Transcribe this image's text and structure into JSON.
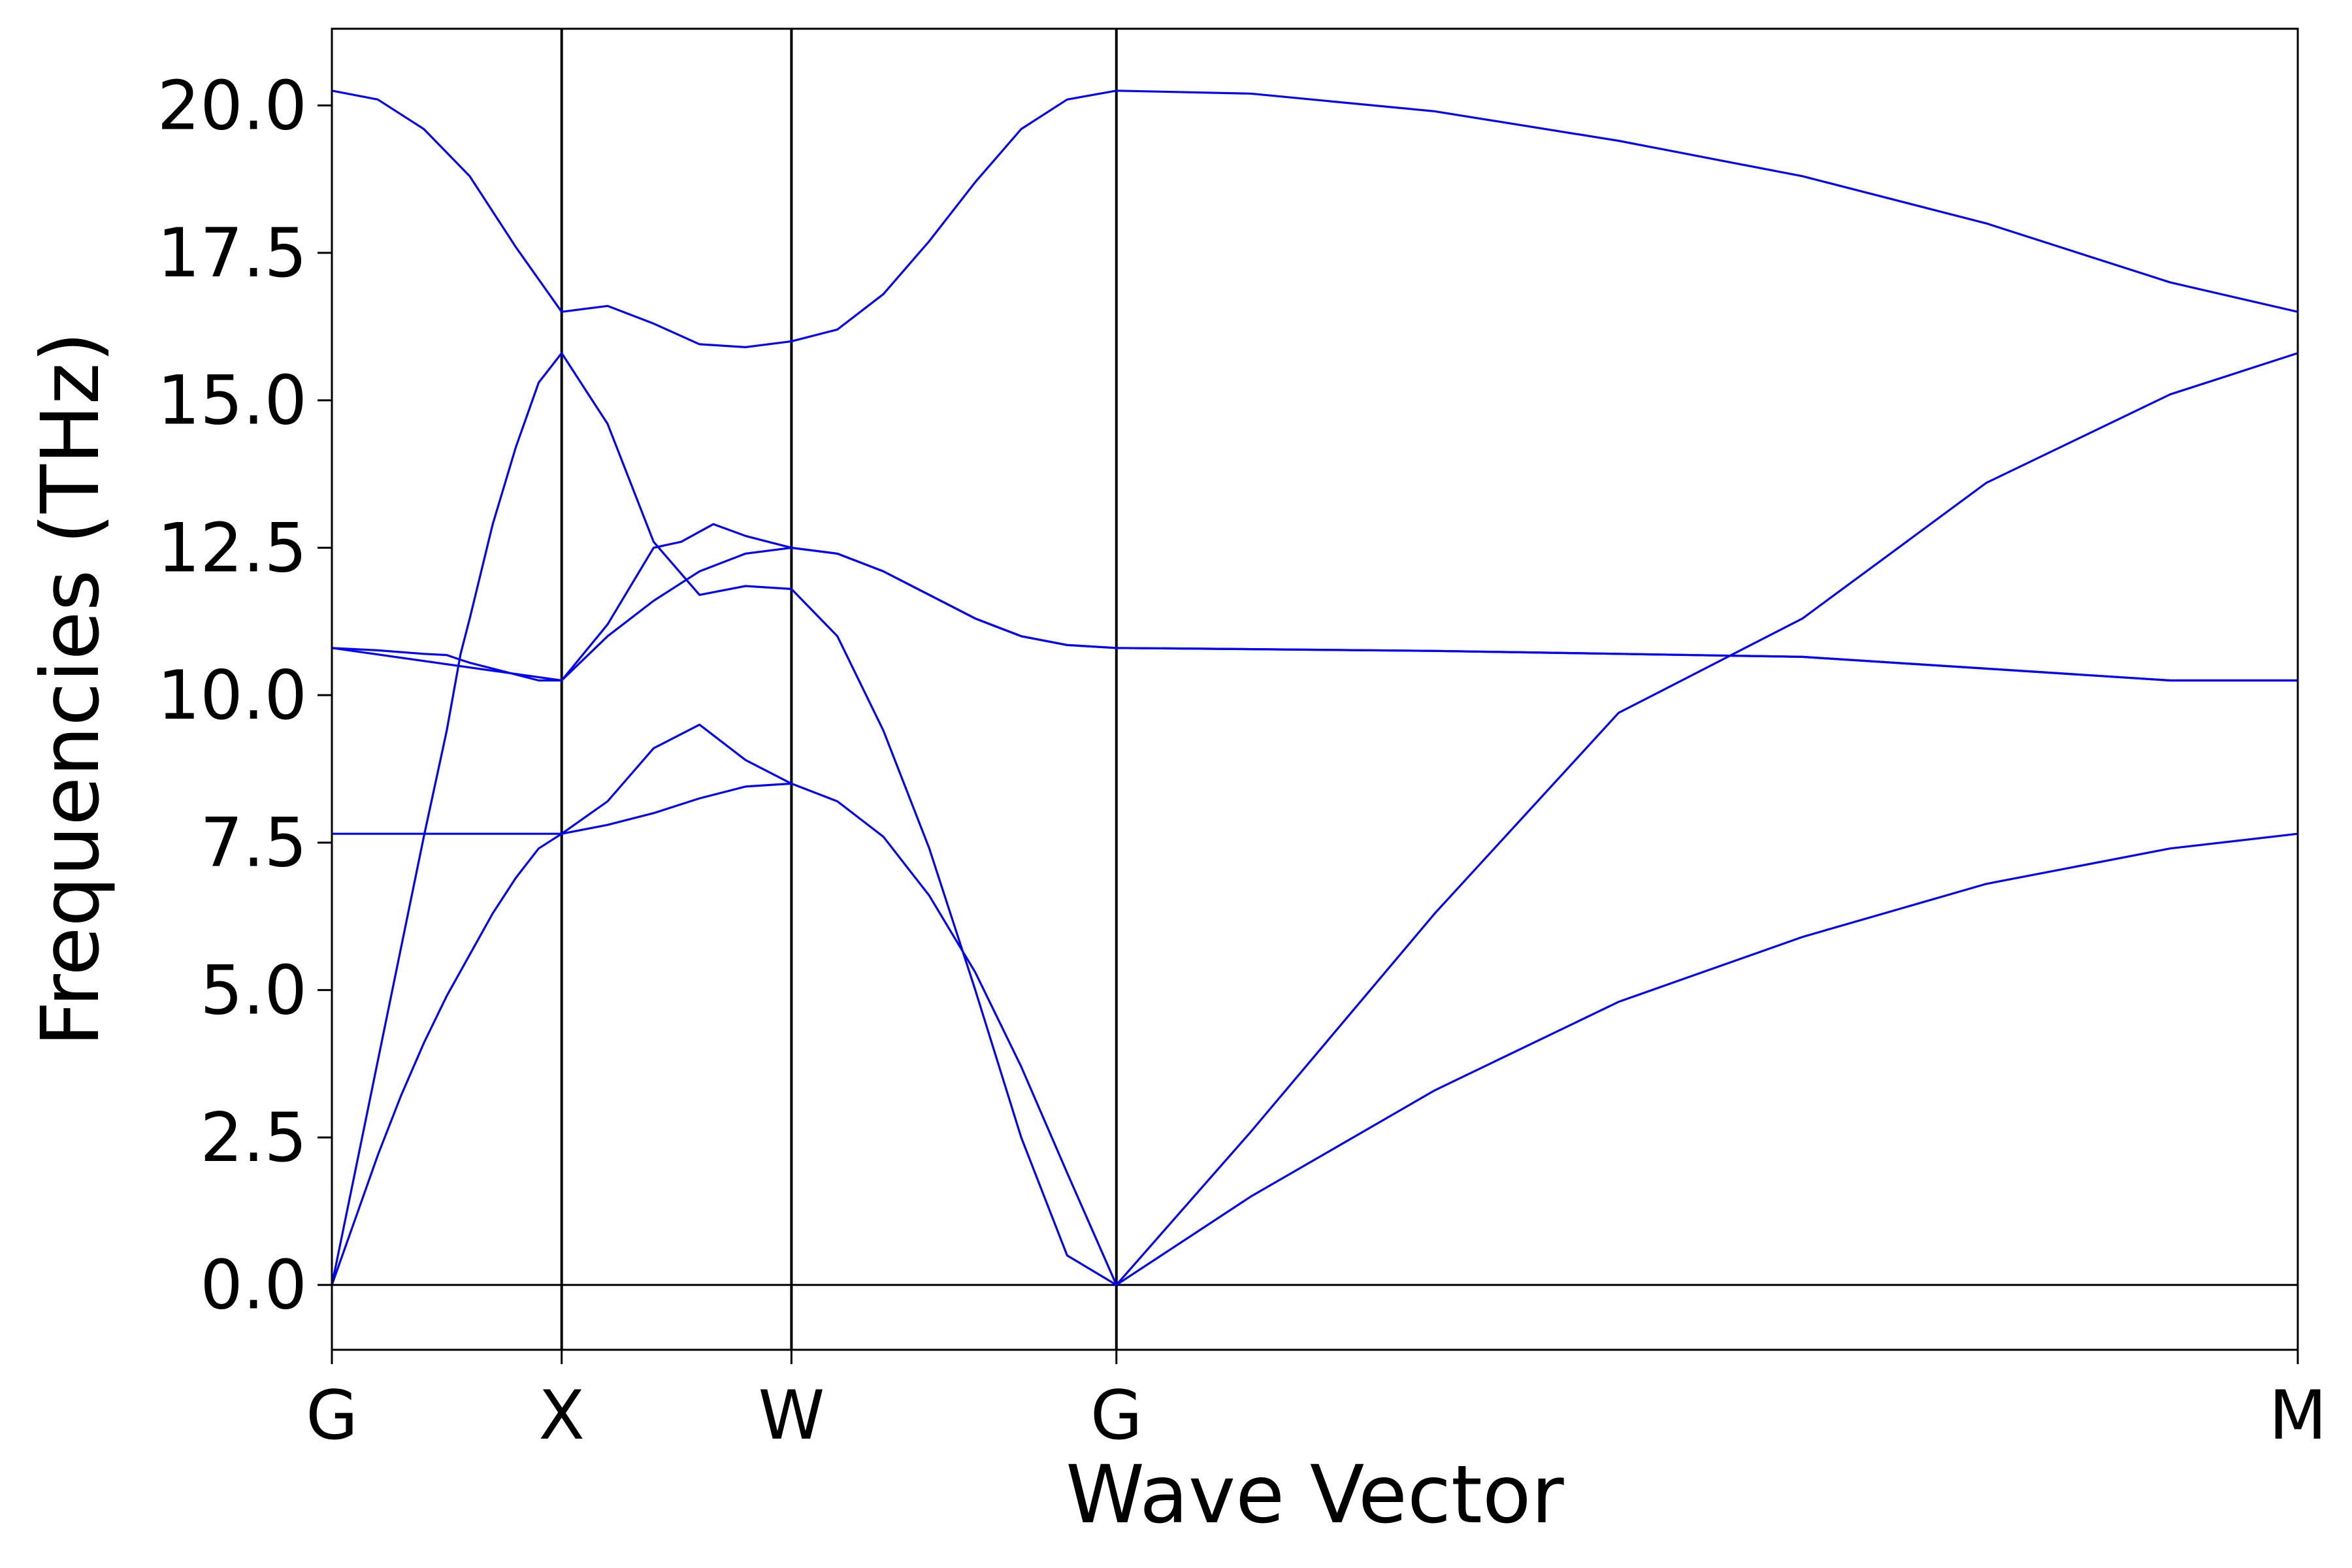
{
  "chart_data": {
    "type": "line",
    "title": "",
    "xlabel": "Wave Vector",
    "ylabel": "Frequencies (THz)",
    "ylim": [
      -1.1,
      21.3
    ],
    "yticks": [
      0.0,
      2.5,
      5.0,
      7.5,
      10.0,
      12.5,
      15.0,
      17.5,
      20.0
    ],
    "ytick_labels": [
      "0.0",
      "2.5",
      "5.0",
      "7.5",
      "10.0",
      "12.5",
      "15.0",
      "17.5",
      "20.0"
    ],
    "grid": false,
    "legend": "none",
    "line_color": "#0000ff",
    "high_symmetry_points": [
      {
        "label": "G",
        "x": 0.0
      },
      {
        "label": "X",
        "x": 0.5
      },
      {
        "label": "W",
        "x": 1.0
      },
      {
        "label": "G",
        "x": 1.7071
      },
      {
        "label": "M",
        "x": 4.2778
      }
    ],
    "zero_line": 0,
    "series": [
      {
        "x": [
          0,
          0.05,
          0.1,
          0.15,
          0.2,
          0.25,
          0.3,
          0.35,
          0.4,
          0.45,
          0.5,
          0.6,
          0.7,
          0.8,
          0.9,
          1.0,
          1.1,
          1.2,
          1.3,
          1.4,
          1.5,
          1.6,
          1.7071,
          2.0,
          2.4,
          2.8,
          3.2,
          3.6,
          4.0,
          4.2778
        ],
        "values": [
          0,
          1.1,
          2.2,
          3.2,
          4.1,
          4.9,
          5.6,
          6.3,
          6.9,
          7.4,
          7.65,
          7.8,
          8.0,
          8.25,
          8.45,
          8.5,
          8.2,
          7.6,
          6.6,
          5.3,
          3.7,
          1.9,
          0,
          1.5,
          3.3,
          4.8,
          5.9,
          6.8,
          7.4,
          7.65
        ]
      },
      {
        "x": [
          0,
          0.05,
          0.1,
          0.15,
          0.2,
          0.25,
          0.28,
          0.3,
          0.35,
          0.4,
          0.45,
          0.5,
          0.6,
          0.7,
          0.8,
          0.9,
          1.0,
          1.1,
          1.2,
          1.3,
          1.4,
          1.5,
          1.6,
          1.7071,
          2.0,
          2.4,
          2.8,
          3.2,
          3.6,
          4.0,
          4.2778
        ],
        "values": [
          0,
          1.9,
          3.8,
          5.7,
          7.6,
          9.4,
          10.7,
          11.3,
          12.9,
          14.2,
          15.3,
          15.8,
          14.6,
          12.6,
          11.7,
          11.85,
          11.8,
          11.0,
          9.4,
          7.4,
          5.0,
          2.5,
          0.5,
          0,
          2.6,
          6.3,
          9.7,
          11.3,
          13.6,
          15.1,
          15.8
        ]
      },
      {
        "x": [
          0,
          0.05,
          0.1,
          0.15,
          0.2,
          0.25,
          0.28,
          0.3,
          0.35,
          0.4,
          0.45,
          0.5,
          0.6,
          0.7,
          0.8,
          0.9,
          1.0,
          1.1,
          1.2,
          1.3,
          1.4,
          1.5,
          1.6,
          1.7071,
          2.0,
          2.4,
          2.8,
          3.2,
          3.6,
          4.0,
          4.2778
        ],
        "values": [
          10.8,
          10.78,
          10.76,
          10.73,
          10.7,
          10.68,
          10.6,
          10.55,
          10.45,
          10.35,
          10.25,
          10.25,
          11.0,
          11.6,
          12.1,
          12.4,
          12.5,
          12.4,
          12.1,
          11.7,
          11.3,
          11.0,
          10.85,
          10.8,
          10.78,
          10.75,
          10.7,
          10.65,
          10.45,
          10.25,
          10.25
        ]
      },
      {
        "x": [
          0,
          0.5,
          0.6,
          0.7,
          0.76,
          0.83,
          0.9,
          1.0,
          1.1,
          1.2,
          1.3,
          1.4,
          1.5,
          1.6,
          1.7071,
          2.0,
          2.4,
          2.8,
          3.2,
          3.6,
          4.0,
          4.2778
        ],
        "values": [
          10.8,
          10.25,
          11.2,
          12.5,
          12.6,
          12.9,
          12.7,
          12.5,
          12.4,
          12.1,
          11.7,
          11.3,
          11.0,
          10.85,
          10.8,
          10.78,
          10.75,
          10.7,
          10.65,
          10.45,
          10.25,
          10.25
        ]
      },
      {
        "x": [
          0,
          0.5,
          0.6,
          0.7,
          0.8,
          0.9,
          1.0
        ],
        "values": [
          7.65,
          7.65,
          8.2,
          9.1,
          9.5,
          8.9,
          8.5
        ]
      },
      {
        "x": [
          0,
          0.1,
          0.2,
          0.3,
          0.4,
          0.5,
          0.6,
          0.7,
          0.8,
          0.9,
          1.0,
          1.1,
          1.2,
          1.3,
          1.4,
          1.5,
          1.6,
          1.7071,
          2.0,
          2.4,
          2.8,
          3.2,
          3.6,
          4.0,
          4.2778
        ],
        "values": [
          20.25,
          20.1,
          19.6,
          18.8,
          17.6,
          16.5,
          16.6,
          16.3,
          15.95,
          15.9,
          16.0,
          16.2,
          16.8,
          17.7,
          18.7,
          19.6,
          20.1,
          20.25,
          20.2,
          19.9,
          19.4,
          18.8,
          18.0,
          17.0,
          16.5
        ]
      }
    ]
  }
}
